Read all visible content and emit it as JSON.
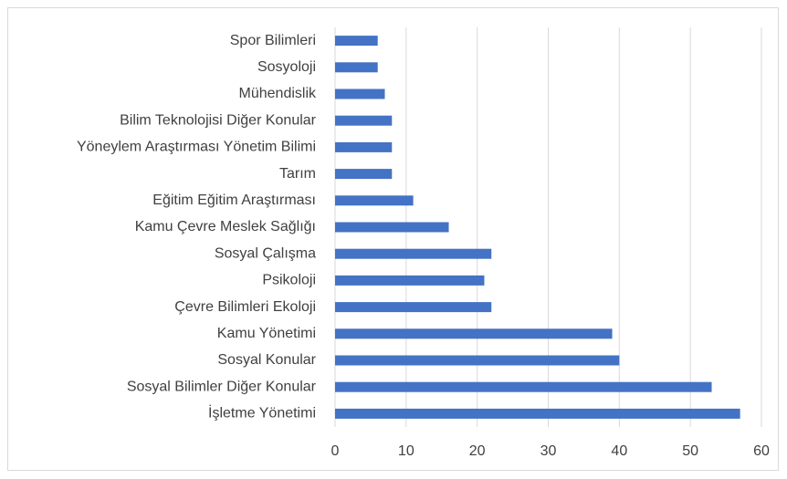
{
  "chart_data": {
    "type": "barh",
    "categories": [
      "Spor Bilimleri",
      "Sosyoloji",
      "Mühendislik",
      "Bilim Teknolojisi Diğer Konular",
      "Yöneylem Araştırması Yönetim Bilimi",
      "Tarım",
      "Eğitim Eğitim Araştırması",
      "Kamu Çevre Meslek Sağlığı",
      "Sosyal Çalışma",
      "Psikoloji",
      "Çevre Bilimleri Ekoloji",
      "Kamu Yönetimi",
      "Sosyal Konular",
      "Sosyal Bilimler Diğer Konular",
      "İşletme Yönetimi"
    ],
    "values": [
      6,
      6,
      7,
      8,
      8,
      8,
      11,
      16,
      22,
      21,
      22,
      39,
      40,
      53,
      57
    ],
    "color": "#4472c4",
    "xlim": [
      0,
      60
    ],
    "xticks": [
      0,
      10,
      20,
      30,
      40,
      50,
      60
    ],
    "grid": true
  }
}
